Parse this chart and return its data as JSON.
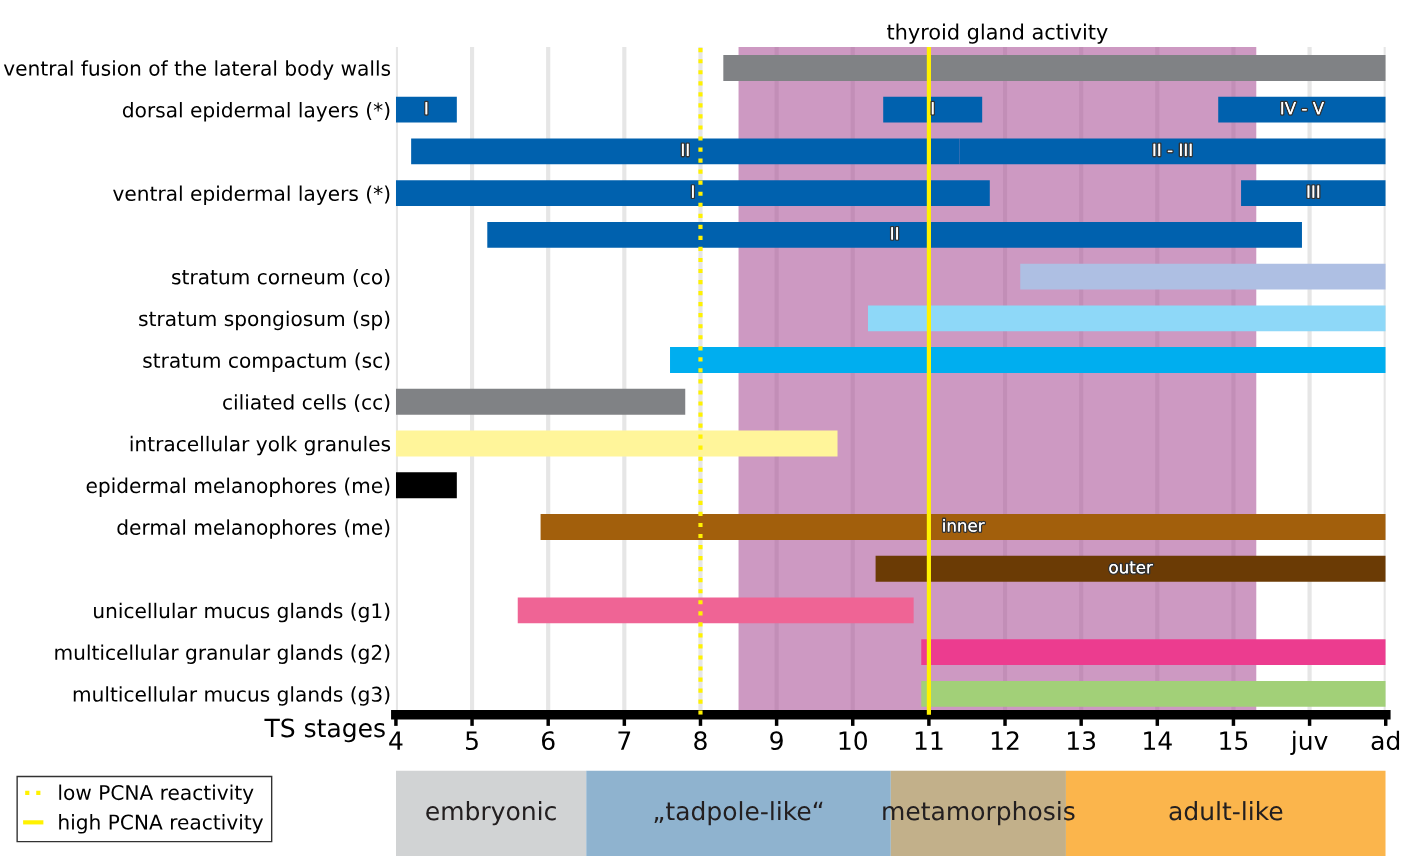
{
  "chart_data": [
    {
      "type": "bar",
      "orientation": "horizontal",
      "categories": [
        "ventral fusion of the lateral body walls",
        "dorsal epidermal layers (*)",
        null,
        "ventral epidermal layers (*)",
        null,
        "stratum corneum (co)",
        "stratum spongiosum (sp)",
        "stratum compactum (sc)",
        "ciliated cells (cc)",
        "intracellular yolk granules",
        "epidermal melanophores (me)",
        "dermal melanophores (me)",
        null,
        "unicellular mucus glands (g1)",
        "multicellular granular glands (g2)",
        "multicellular mucus glands (g3)"
      ],
      "series": [
        {
          "base": [
            8.3,
            4,
            4.2,
            4,
            5.2,
            12.2,
            10.2,
            7.6,
            4,
            4,
            4,
            5.9,
            10.3,
            5.6,
            10.9,
            10.9
          ],
          "values": [
            8.7,
            0.8,
            7.2,
            7.8,
            10.7,
            4.8,
            6.8,
            9.4,
            3.8,
            5.8,
            0.8,
            11.1,
            6.7,
            5.2,
            6.1,
            6.1
          ],
          "colors": [
            "#808285",
            "#0061ae",
            "#0061ae",
            "#0061ae",
            "#0061ae",
            "#aebfe3",
            "#8ed8f8",
            "#00aeef",
            "#808285",
            "#fff59a",
            "#000000",
            "#a25f0c",
            "#6b3b05",
            "#ef6495",
            "#ec3c8f",
            "#a2d078"
          ],
          "value_labels": [
            null,
            "I",
            "II",
            "I",
            "II",
            null,
            null,
            null,
            null,
            null,
            null,
            "inner",
            "outer",
            null,
            null,
            null
          ]
        },
        {
          "base": [
            null,
            10.4,
            11.4,
            15.1,
            null,
            null,
            null,
            null,
            null,
            null,
            null,
            null,
            null,
            null,
            null,
            null
          ],
          "values": [
            null,
            1.3,
            5.6,
            1.9,
            null,
            null,
            null,
            null,
            null,
            null,
            null,
            null,
            null,
            null,
            null,
            null
          ],
          "colors": [
            "#0061ae",
            "#0061ae",
            "#0061ae",
            "#0061ae",
            "#0061ae",
            "#0061ae",
            "#0061ae",
            "#0061ae",
            "#0061ae",
            "#0061ae",
            "#0061ae",
            "#0061ae",
            "#0061ae",
            "#0061ae",
            "#0061ae",
            "#0061ae"
          ],
          "value_labels": [
            null,
            "I",
            "II - III",
            "III",
            null,
            null,
            null,
            null,
            null,
            null,
            null,
            null,
            null,
            null,
            null,
            null
          ]
        },
        {
          "base": [
            null,
            14.8,
            null,
            null,
            null,
            null,
            null,
            null,
            null,
            null,
            null,
            null,
            null,
            null,
            null,
            null
          ],
          "values": [
            null,
            2.2,
            null,
            null,
            null,
            null,
            null,
            null,
            null,
            null,
            null,
            null,
            null,
            null,
            null,
            null
          ],
          "colors": [
            "#0061ae",
            "#0061ae",
            "#0061ae",
            "#0061ae",
            "#0061ae",
            "#0061ae",
            "#0061ae",
            "#0061ae",
            "#0061ae",
            "#0061ae",
            "#0061ae",
            "#0061ae",
            "#0061ae",
            "#0061ae",
            "#0061ae",
            "#0061ae"
          ],
          "value_labels": [
            null,
            "IV - V",
            null,
            null,
            null,
            null,
            null,
            null,
            null,
            null,
            null,
            null,
            null,
            null,
            null,
            null
          ]
        }
      ],
      "xlabel": "TS stages",
      "xlim": [
        4,
        17
      ],
      "xticks": [
        4,
        5,
        6,
        7,
        8,
        9,
        10,
        11,
        12,
        13,
        14,
        15,
        {
          "value": 16,
          "label": "juv"
        },
        {
          "value": 17,
          "label": "ad"
        }
      ],
      "grid": "x",
      "bands": [
        {
          "axis": "x",
          "from": 8.5,
          "to": 15.3,
          "label": "thyroid gland activity",
          "color": "#a4468f"
        }
      ],
      "ref_lines": [
        {
          "axis": "x",
          "value": 8,
          "label": "low PCNA reactivity",
          "color": "#fff200",
          "line_style": "dotted"
        },
        {
          "axis": "x",
          "value": 11,
          "label": "high PCNA reactivity",
          "color": "#fff200",
          "line_style": "solid"
        }
      ],
      "legend": "bottom left"
    },
    {
      "type": "bar",
      "orientation": "horizontal",
      "categories": [
        null
      ],
      "series": [
        {
          "name": "embryonic",
          "color": "#d1d3d4",
          "base": [
            4
          ],
          "values": [
            2.5
          ]
        },
        {
          "name": "„tadpole-like“",
          "color": "#8fb3cf",
          "base": [
            6.5
          ],
          "values": [
            4
          ]
        },
        {
          "name": "metamorphosis",
          "color": "#c2b08a",
          "base": [
            10.5
          ],
          "values": [
            2.3
          ]
        },
        {
          "name": "adult-like",
          "color": "#fbb54c",
          "base": [
            12.8
          ],
          "values": [
            4.2
          ]
        }
      ],
      "xlim": [
        4,
        17
      ],
      "tick_labels": false
    }
  ]
}
